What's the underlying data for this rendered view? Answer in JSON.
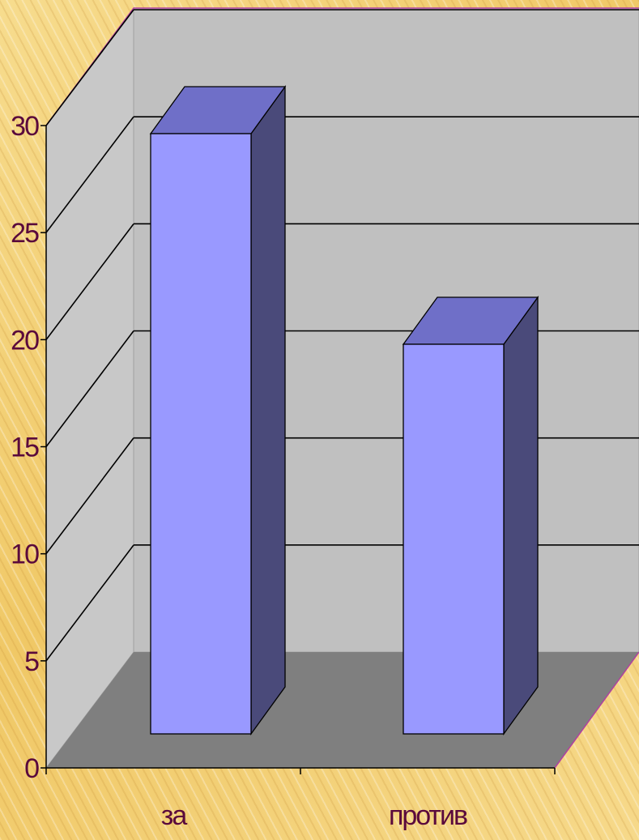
{
  "chart_data": {
    "type": "bar",
    "categories": [
      "за",
      "против"
    ],
    "values": [
      28.5,
      18.5
    ],
    "ylim": [
      0,
      30
    ],
    "y_ticks": [
      0,
      5,
      10,
      15,
      20,
      25,
      30
    ],
    "grid": true,
    "legend": "none",
    "style": "3d-column",
    "colors": {
      "bar_front": "#9999ff",
      "bar_top": "#6f6fc8",
      "bar_side": "#4a4a7a",
      "back_wall": "#c0c0c0",
      "side_wall": "#c8c8c8",
      "floor": "#7f7f7f",
      "text": "#5a0a3c"
    }
  }
}
